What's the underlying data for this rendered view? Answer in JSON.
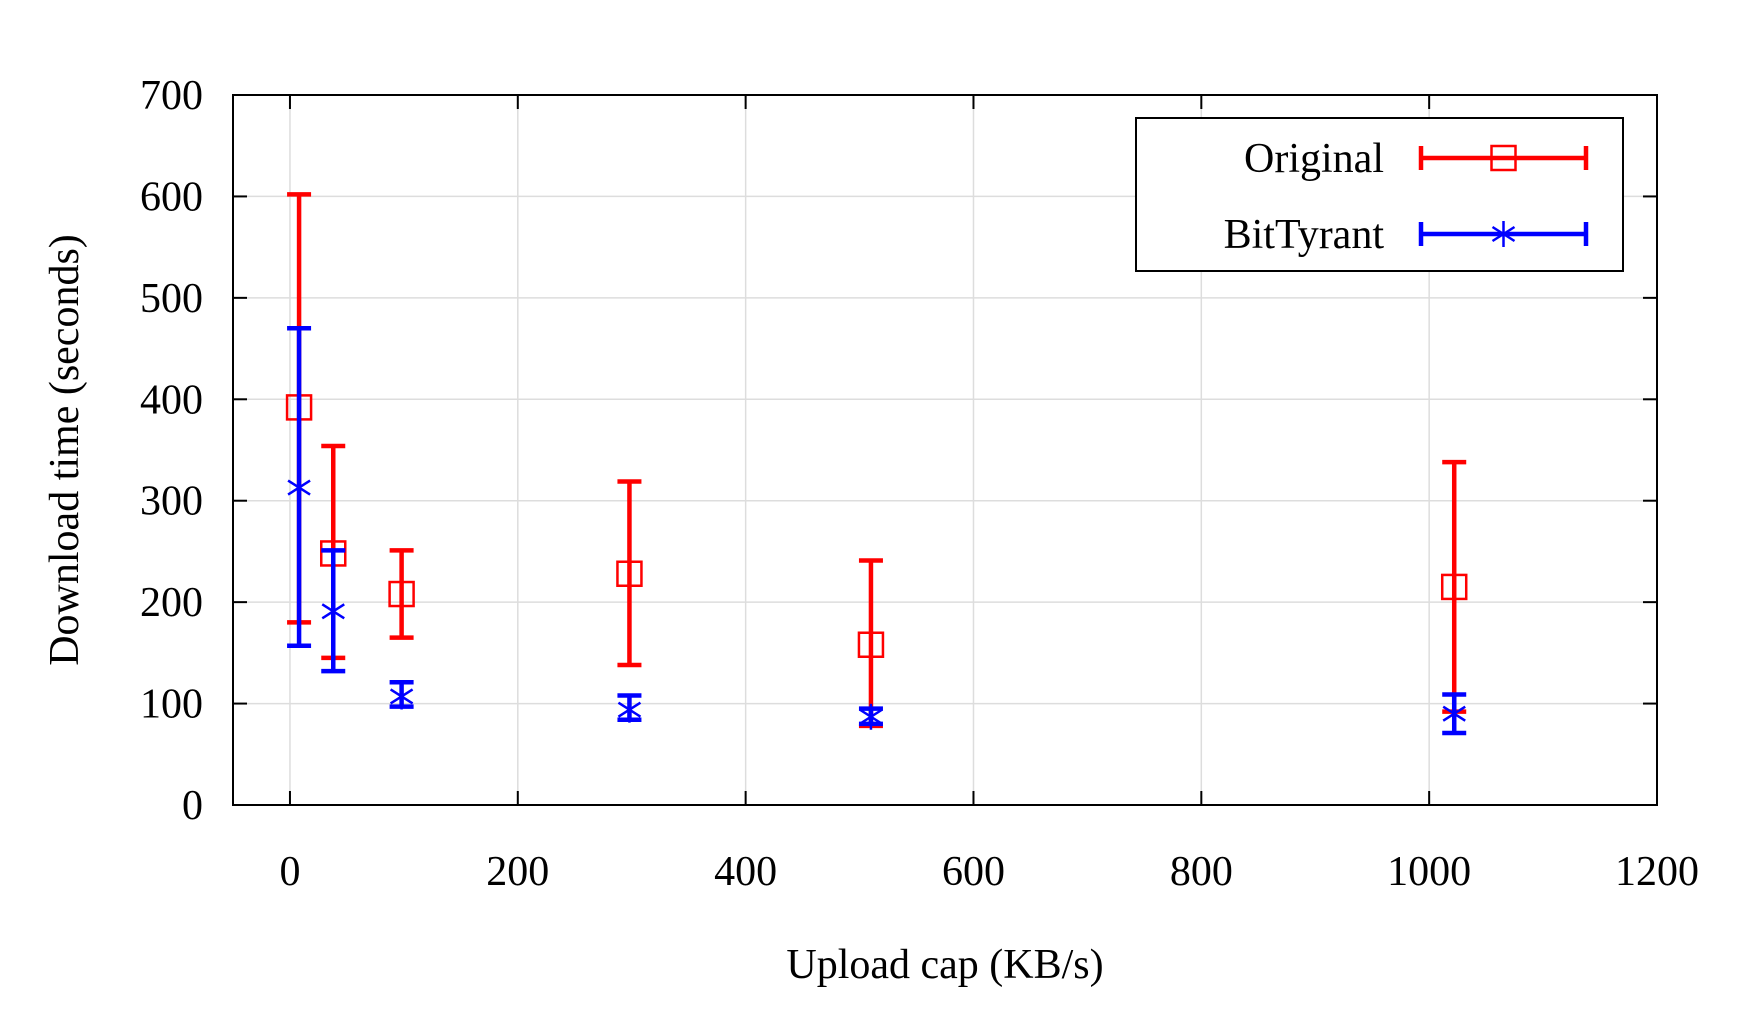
{
  "chart_data": {
    "type": "scatter",
    "subtype": "errorbar",
    "title": "",
    "xlabel": "Upload cap (KB/s)",
    "ylabel": "Download time (seconds)",
    "xlim": [
      -50,
      1200
    ],
    "ylim": [
      0,
      700
    ],
    "xticks": [
      0,
      200,
      400,
      600,
      800,
      1000,
      1200
    ],
    "yticks": [
      0,
      100,
      200,
      300,
      400,
      500,
      600,
      700
    ],
    "grid": true,
    "legend_position": "top-right",
    "series": [
      {
        "name": "Original",
        "color": "#ff0000",
        "marker": "square",
        "points": [
          {
            "x": 8,
            "y": 392,
            "ylow": 180,
            "yhigh": 602
          },
          {
            "x": 38,
            "y": 248,
            "ylow": 145,
            "yhigh": 354
          },
          {
            "x": 98,
            "y": 208,
            "ylow": 165,
            "yhigh": 251
          },
          {
            "x": 298,
            "y": 228,
            "ylow": 138,
            "yhigh": 319
          },
          {
            "x": 510,
            "y": 158,
            "ylow": 78,
            "yhigh": 241
          },
          {
            "x": 1022,
            "y": 215,
            "ylow": 92,
            "yhigh": 338
          }
        ]
      },
      {
        "name": "BitTyrant",
        "color": "#0000ff",
        "marker": "asterisk",
        "points": [
          {
            "x": 8,
            "y": 313,
            "ylow": 157,
            "yhigh": 470
          },
          {
            "x": 38,
            "y": 191,
            "ylow": 132,
            "yhigh": 251
          },
          {
            "x": 98,
            "y": 107,
            "ylow": 97,
            "yhigh": 121
          },
          {
            "x": 298,
            "y": 94,
            "ylow": 84,
            "yhigh": 108
          },
          {
            "x": 510,
            "y": 87,
            "ylow": 80,
            "yhigh": 95
          },
          {
            "x": 1022,
            "y": 90,
            "ylow": 71,
            "yhigh": 109
          }
        ]
      }
    ]
  }
}
